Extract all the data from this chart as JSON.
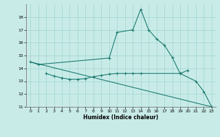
{
  "xlabel": "Humidex (Indice chaleur)",
  "line1_x": [
    0,
    1,
    10,
    11,
    13,
    14,
    15,
    16,
    17,
    18,
    19,
    21,
    22,
    23
  ],
  "line1_y": [
    14.5,
    14.3,
    14.8,
    16.8,
    17.0,
    18.6,
    17.0,
    16.3,
    15.8,
    14.85,
    13.6,
    13.0,
    12.2,
    11.0
  ],
  "line2_x": [
    2,
    3,
    4,
    5,
    6,
    7,
    8,
    9,
    10,
    11,
    12,
    13,
    14,
    19,
    20
  ],
  "line2_y": [
    13.6,
    13.4,
    13.25,
    13.15,
    13.15,
    13.2,
    13.35,
    13.45,
    13.55,
    13.6,
    13.6,
    13.6,
    13.6,
    13.6,
    13.85
  ],
  "line3_x": [
    0,
    23
  ],
  "line3_y": [
    14.5,
    11.0
  ],
  "line_color": "#1a7a6e",
  "bg_color": "#c8ebe8",
  "grid_color": "#9dd4cf",
  "ylim": [
    11,
    19
  ],
  "xlim": [
    -0.5,
    23.5
  ],
  "yticks": [
    11,
    12,
    13,
    14,
    15,
    16,
    17,
    18
  ],
  "xticks": [
    0,
    1,
    2,
    3,
    4,
    5,
    6,
    7,
    8,
    9,
    10,
    11,
    12,
    13,
    14,
    15,
    16,
    17,
    18,
    19,
    20,
    21,
    22,
    23
  ]
}
